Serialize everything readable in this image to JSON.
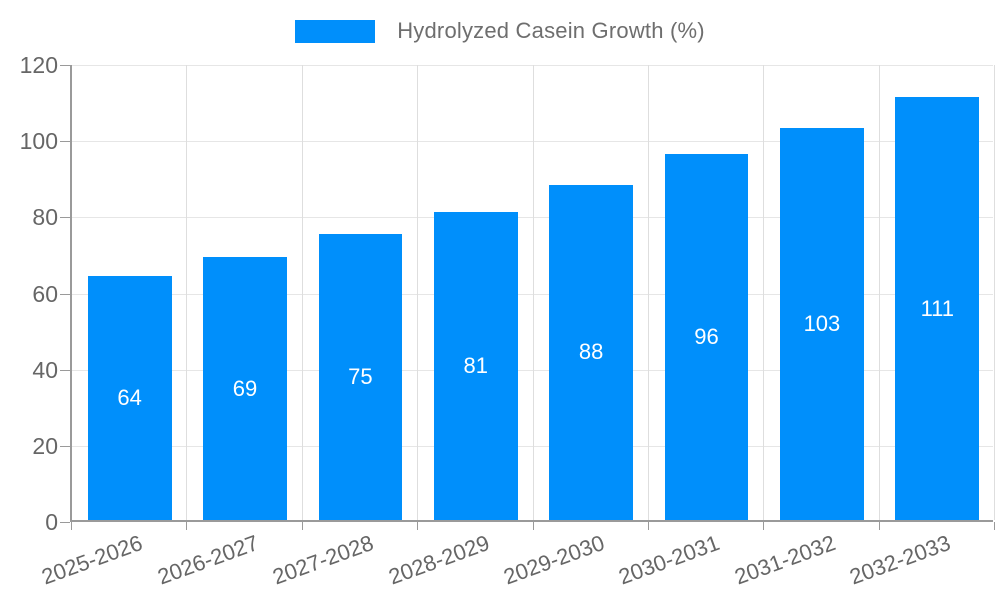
{
  "legend": {
    "items": [
      {
        "label": "Hydrolyzed Casein Growth (%)",
        "color": "#008FFB"
      }
    ]
  },
  "chart_data": {
    "type": "bar",
    "title": "",
    "categories": [
      "2025-2026",
      "2026-2027",
      "2027-2028",
      "2028-2029",
      "2029-2030",
      "2030-2031",
      "2031-2032",
      "2032-2033"
    ],
    "series": [
      {
        "name": "Hydrolyzed Casein Growth (%)",
        "color": "#008FFB",
        "values": [
          64,
          69,
          75,
          81,
          88,
          96,
          103,
          111
        ]
      }
    ],
    "xlabel": "",
    "ylabel": "",
    "ylim": [
      0,
      120
    ],
    "yticks": [
      0,
      20,
      40,
      60,
      80,
      100,
      120
    ],
    "grid": true,
    "legend_position": "top",
    "value_labels": {
      "show": true,
      "position": "center"
    },
    "x_tick_rotation": -20
  },
  "colors": {
    "bar": "#008FFB",
    "axis_line": "#9a9a9a",
    "grid_horizontal": "#e6e6e6",
    "grid_vertical": "#dedede",
    "tick_text": "#666666",
    "legend_text": "#6e6e6e",
    "value_text": "#ffffff"
  }
}
